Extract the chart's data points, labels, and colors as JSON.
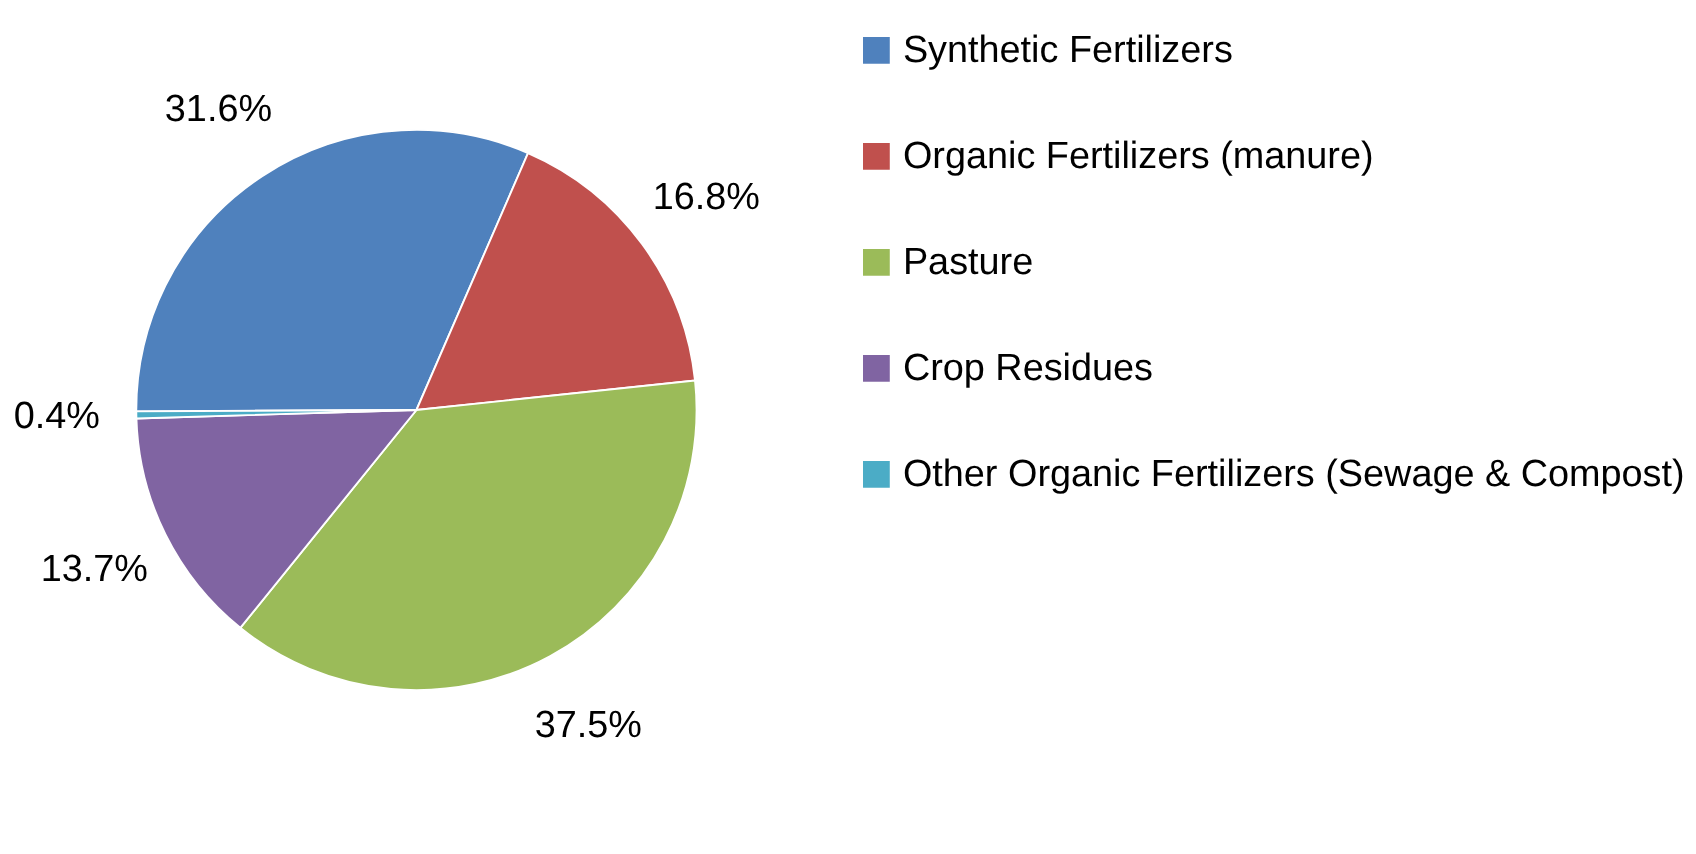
{
  "chart_data": {
    "type": "pie",
    "categories": [
      "Synthetic Fertilizers",
      "Organic Fertilizers (manure)",
      "Pasture",
      "Crop Residues",
      "Other Organic Fertilizers (Sewage & Compost)"
    ],
    "values": [
      31.6,
      16.8,
      37.5,
      13.7,
      0.4
    ],
    "value_labels": [
      "31.6%",
      "16.8%",
      "37.5%",
      "13.7%",
      "0.4%"
    ],
    "colors": [
      "#4f81bd",
      "#c0504d",
      "#9bbb59",
      "#8064a2",
      "#4bacc6"
    ],
    "legend": "right"
  }
}
